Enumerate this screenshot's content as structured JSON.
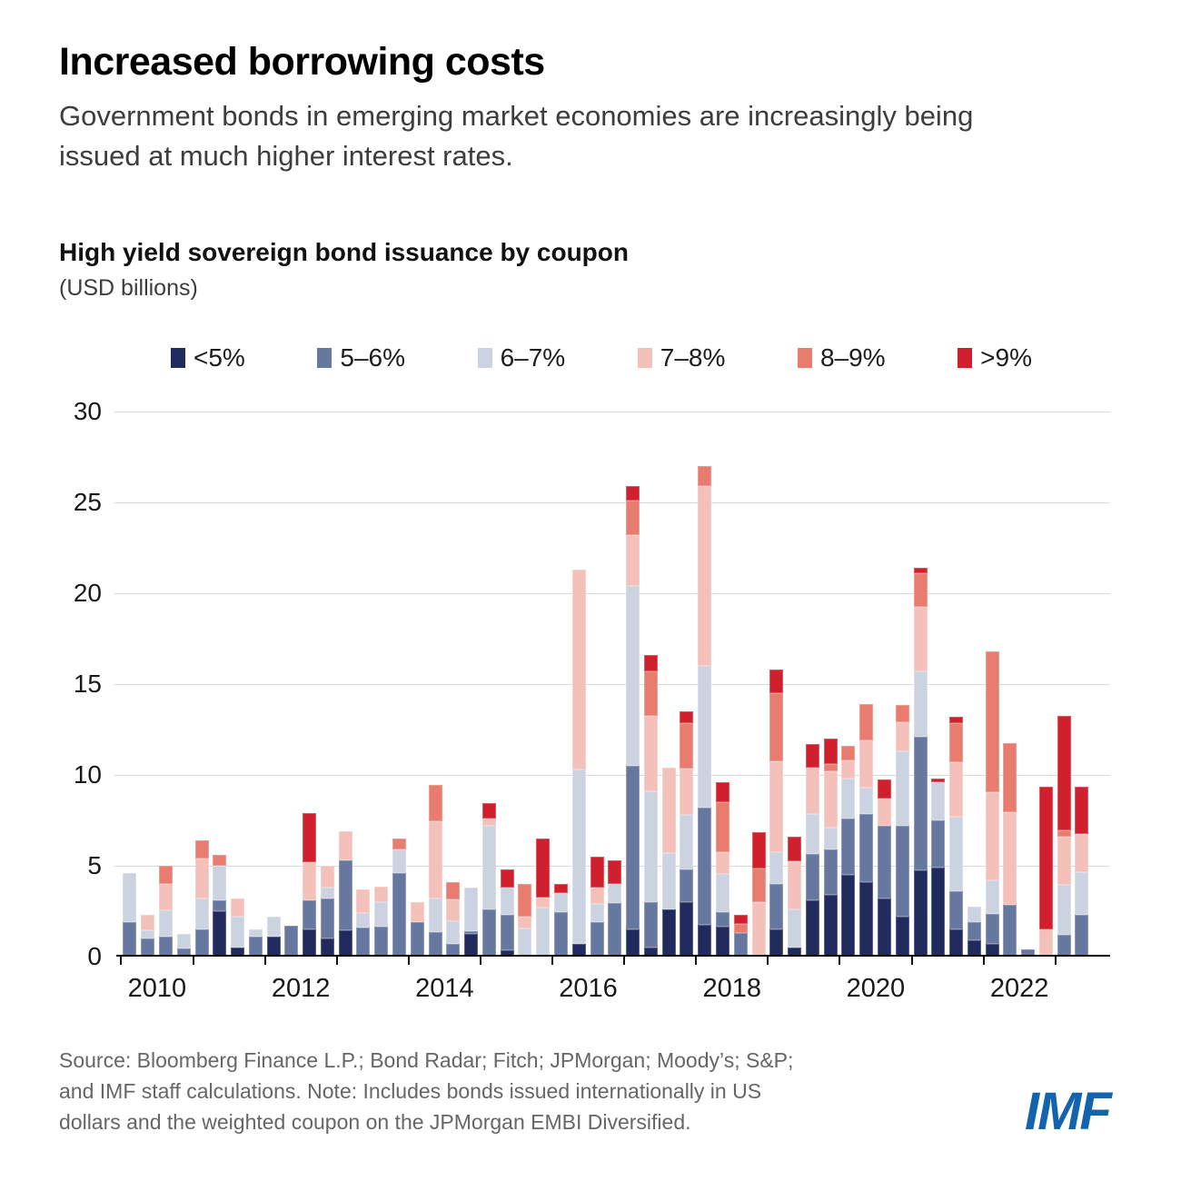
{
  "header": {
    "title": "Increased borrowing costs",
    "subtitle": "Government bonds in emerging market economies are increasingly being issued at much higher interest rates.",
    "chart_heading": "High yield sovereign bond issuance by coupon",
    "units_label": "(USD billions)"
  },
  "footer": {
    "source_lines": [
      "Source: Bloomberg Finance L.P.; Bond Radar; Fitch; JPMorgan; Moody’s; S&P;",
      "and IMF staff calculations. Note: Includes bonds issued internationally in US",
      "dollars and the weighted coupon on the JPMorgan EMBI Diversified."
    ],
    "logo_text": "IMF",
    "logo_color": "#1464ad"
  },
  "chart_data": {
    "type": "bar",
    "stacked": true,
    "title": "High yield sovereign bond issuance by coupon",
    "ylabel": "USD billions",
    "ylim": [
      0,
      30
    ],
    "yticks": [
      0,
      5,
      10,
      15,
      20,
      25,
      30
    ],
    "grid": true,
    "legend_position": "top",
    "axis_color": "#000000",
    "grid_color": "#d9d9d9",
    "x_tick_years": [
      2010,
      2011,
      2012,
      2013,
      2014,
      2015,
      2016,
      2017,
      2018,
      2019,
      2020,
      2021,
      2022,
      2023
    ],
    "x_axis_labels": [
      "2010",
      "2012",
      "2014",
      "2016",
      "2018",
      "2020",
      "2022"
    ],
    "categories": [
      "2010 Q1",
      "2010 Q2",
      "2010 Q3",
      "2010 Q4",
      "2011 Q1",
      "2011 Q2",
      "2011 Q3",
      "2011 Q4",
      "2012 Q1",
      "2012 Q2",
      "2012 Q3",
      "2012 Q4",
      "2013 Q1",
      "2013 Q2",
      "2013 Q3",
      "2013 Q4",
      "2014 Q1",
      "2014 Q2",
      "2014 Q3",
      "2014 Q4",
      "2015 Q1",
      "2015 Q2",
      "2015 Q3",
      "2015 Q4",
      "2016 Q1",
      "2016 Q2",
      "2016 Q3",
      "2016 Q4",
      "2017 Q1",
      "2017 Q2",
      "2017 Q3",
      "2017 Q4",
      "2018 Q1",
      "2018 Q2",
      "2018 Q3",
      "2018 Q4",
      "2019 Q1",
      "2019 Q2",
      "2019 Q3",
      "2019 Q4",
      "2020 Q1",
      "2020 Q2",
      "2020 Q3",
      "2020 Q4",
      "2021 Q1",
      "2021 Q2",
      "2021 Q3",
      "2021 Q4",
      "2022 Q1",
      "2022 Q2",
      "2022 Q3",
      "2022 Q4",
      "2023 Q1",
      "2023 Q2"
    ],
    "series": [
      {
        "name": "<5%",
        "color": "#212a5c",
        "values": [
          0,
          0,
          0,
          0,
          0,
          2.5,
          0.5,
          0,
          1.1,
          0,
          1.5,
          1.0,
          1.45,
          0,
          0,
          0,
          0,
          0,
          0,
          1.25,
          0,
          0.35,
          0,
          0,
          0,
          0.7,
          0,
          0,
          1.5,
          0.5,
          2.6,
          3.0,
          1.75,
          1.65,
          0,
          0,
          1.5,
          0.5,
          3.1,
          3.4,
          4.5,
          4.1,
          3.2,
          2.2,
          4.75,
          4.9,
          1.5,
          0.9,
          0.7,
          0,
          0,
          0,
          0,
          0
        ]
      },
      {
        "name": "5–6%",
        "color": "#6678a0",
        "values": [
          1.9,
          1.0,
          1.1,
          0.45,
          1.5,
          0.6,
          0,
          1.1,
          0,
          1.7,
          1.6,
          2.2,
          3.85,
          1.6,
          1.65,
          4.6,
          1.9,
          1.35,
          0.7,
          0.15,
          2.6,
          1.95,
          0,
          0,
          2.45,
          0,
          1.9,
          2.95,
          9.0,
          2.5,
          0,
          1.8,
          6.45,
          0.8,
          1.3,
          0,
          2.5,
          0,
          2.55,
          2.5,
          3.1,
          3.75,
          4.0,
          5.0,
          7.35,
          2.6,
          2.1,
          1.0,
          1.65,
          2.85,
          0.4,
          0,
          1.2,
          2.3
        ]
      },
      {
        "name": "6–7%",
        "color": "#ccd3e0",
        "values": [
          2.7,
          0.45,
          1.45,
          0.8,
          1.7,
          1.9,
          1.7,
          0.4,
          1.1,
          0,
          0,
          0.6,
          0,
          0.8,
          1.35,
          1.3,
          0,
          1.85,
          1.25,
          2.4,
          4.6,
          1.5,
          1.55,
          2.7,
          1.05,
          9.6,
          1.0,
          1.05,
          9.9,
          6.1,
          3.1,
          3.0,
          7.8,
          2.1,
          0,
          0,
          1.75,
          2.1,
          2.2,
          1.2,
          2.2,
          1.45,
          0,
          4.1,
          3.6,
          2.1,
          4.1,
          0.85,
          1.85,
          0,
          0,
          0,
          2.75,
          2.35
        ]
      },
      {
        "name": "7–8%",
        "color": "#f4c1ba",
        "values": [
          0,
          0.85,
          1.45,
          0,
          2.2,
          0,
          1.0,
          0,
          0,
          0,
          2.1,
          1.2,
          1.6,
          1.3,
          0.85,
          0,
          1.1,
          4.25,
          1.2,
          0,
          0.4,
          0,
          0.65,
          0.55,
          0,
          11.0,
          0.9,
          0,
          2.8,
          4.15,
          4.7,
          2.55,
          9.9,
          1.2,
          0,
          3.0,
          5.0,
          2.65,
          2.55,
          3.1,
          1.0,
          2.6,
          1.5,
          1.6,
          3.55,
          0,
          3.0,
          0,
          4.85,
          5.1,
          0,
          1.5,
          2.65,
          2.1
        ]
      },
      {
        "name": "8–9%",
        "color": "#e87c6e",
        "values": [
          0,
          0,
          1.0,
          0,
          1.0,
          0.6,
          0,
          0,
          0,
          0,
          0,
          0,
          0,
          0,
          0,
          0.6,
          0,
          2.0,
          0.95,
          0,
          0,
          0,
          1.8,
          0,
          0,
          0,
          0,
          0,
          1.9,
          2.45,
          0,
          2.5,
          1.1,
          2.75,
          0.5,
          1.85,
          3.75,
          0,
          0,
          0.4,
          0.8,
          2.0,
          0,
          0.95,
          1.85,
          0,
          2.15,
          0,
          7.75,
          3.8,
          0,
          0,
          0.35,
          0
        ]
      },
      {
        "name": ">9%",
        "color": "#d0202e",
        "values": [
          0,
          0,
          0,
          0,
          0,
          0,
          0,
          0,
          0,
          0,
          2.7,
          0,
          0,
          0,
          0,
          0,
          0,
          0,
          0,
          0,
          0.85,
          1.0,
          0,
          3.25,
          0.5,
          0,
          1.7,
          1.3,
          0.8,
          0.9,
          0,
          0.65,
          0,
          1.1,
          0.5,
          2.0,
          1.3,
          1.35,
          1.3,
          1.4,
          0,
          0,
          1.05,
          0,
          0.3,
          0.2,
          0.35,
          0,
          0,
          0,
          0,
          7.85,
          6.3,
          2.6
        ]
      }
    ]
  }
}
